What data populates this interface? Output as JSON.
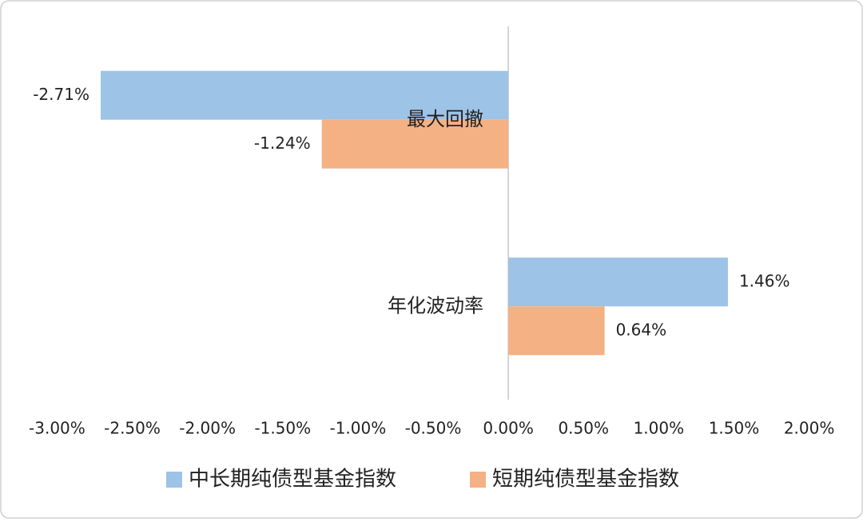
{
  "chart_data": {
    "type": "barh",
    "categories": [
      "最大回撤",
      "年化波动率"
    ],
    "series": [
      {
        "name": "中长期纯债型基金指数",
        "color": "#9dc3e6",
        "values": [
          -2.71,
          1.46
        ],
        "value_labels": [
          "-2.71%",
          "1.46%"
        ]
      },
      {
        "name": "短期纯债型基金指数",
        "color": "#f4b183",
        "values": [
          -1.24,
          0.64
        ],
        "value_labels": [
          "-1.24%",
          "0.64%"
        ]
      }
    ],
    "xlim": [
      -3,
      2
    ],
    "xticks": [
      {
        "value": -3,
        "label": "-3.00%"
      },
      {
        "value": -2.5,
        "label": "-2.50%"
      },
      {
        "value": -2,
        "label": "-2.00%"
      },
      {
        "value": -1.5,
        "label": "-1.50%"
      },
      {
        "value": -1,
        "label": "-1.00%"
      },
      {
        "value": -0.5,
        "label": "-0.50%"
      },
      {
        "value": 0,
        "label": "0.00%"
      },
      {
        "value": 0.5,
        "label": "0.50%"
      },
      {
        "value": 1,
        "label": "1.00%"
      },
      {
        "value": 1.5,
        "label": "1.50%"
      },
      {
        "value": 2,
        "label": "2.00%"
      }
    ],
    "legend": "bottom"
  }
}
